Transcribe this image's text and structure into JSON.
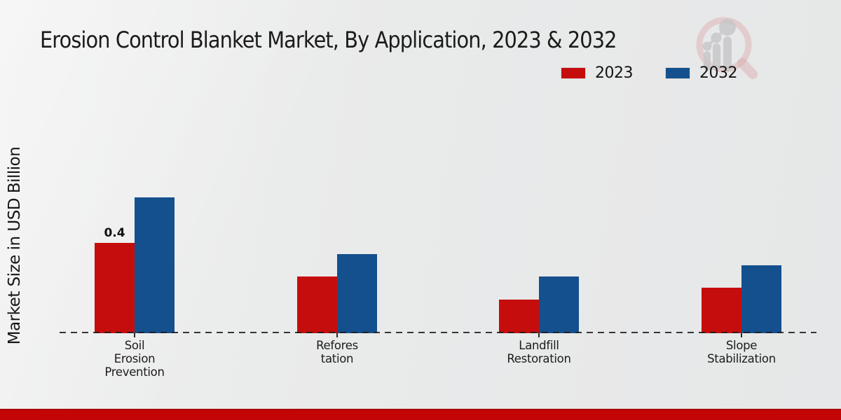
{
  "header": {
    "title": "Erosion Control Blanket Market, By Application, 2023 & 2032"
  },
  "y_axis": {
    "label": "Market Size in USD Billion"
  },
  "legend": {
    "position": "top-right",
    "items": [
      {
        "label": "2023",
        "color": "#c60d0d"
      },
      {
        "label": "2032",
        "color": "#14508e"
      }
    ]
  },
  "watermark": {
    "name": "magnifier-growth-chart-logo",
    "ring_color": "#d9a8a8",
    "bars_color": "#c6c6c8"
  },
  "footer": {
    "band_color": "#c30505"
  },
  "chart_data": {
    "type": "bar",
    "title": "Erosion Control Blanket Market, By Application, 2023 & 2032",
    "xlabel": "",
    "ylabel": "Market Size in USD Billion",
    "categories": [
      "Soil\nErosion\nPrevention",
      "Refores\ntation",
      "Landfill\nRestoration",
      "Slope\nStabilization"
    ],
    "series": [
      {
        "name": "2023",
        "color": "#c60d0d",
        "values": [
          0.4,
          0.25,
          0.15,
          0.2
        ],
        "data_labels": [
          "0.4",
          "",
          "",
          ""
        ]
      },
      {
        "name": "2032",
        "color": "#14508e",
        "values": [
          0.6,
          0.35,
          0.25,
          0.3
        ],
        "data_labels": [
          "",
          "",
          "",
          ""
        ]
      }
    ],
    "ylim": [
      0,
      0.65
    ],
    "y_ticks_visible": false,
    "grid": false,
    "baseline_style": "dashed",
    "legend_position": "top-right",
    "data_label_note": "only first 2023 bar labeled 0.4"
  }
}
